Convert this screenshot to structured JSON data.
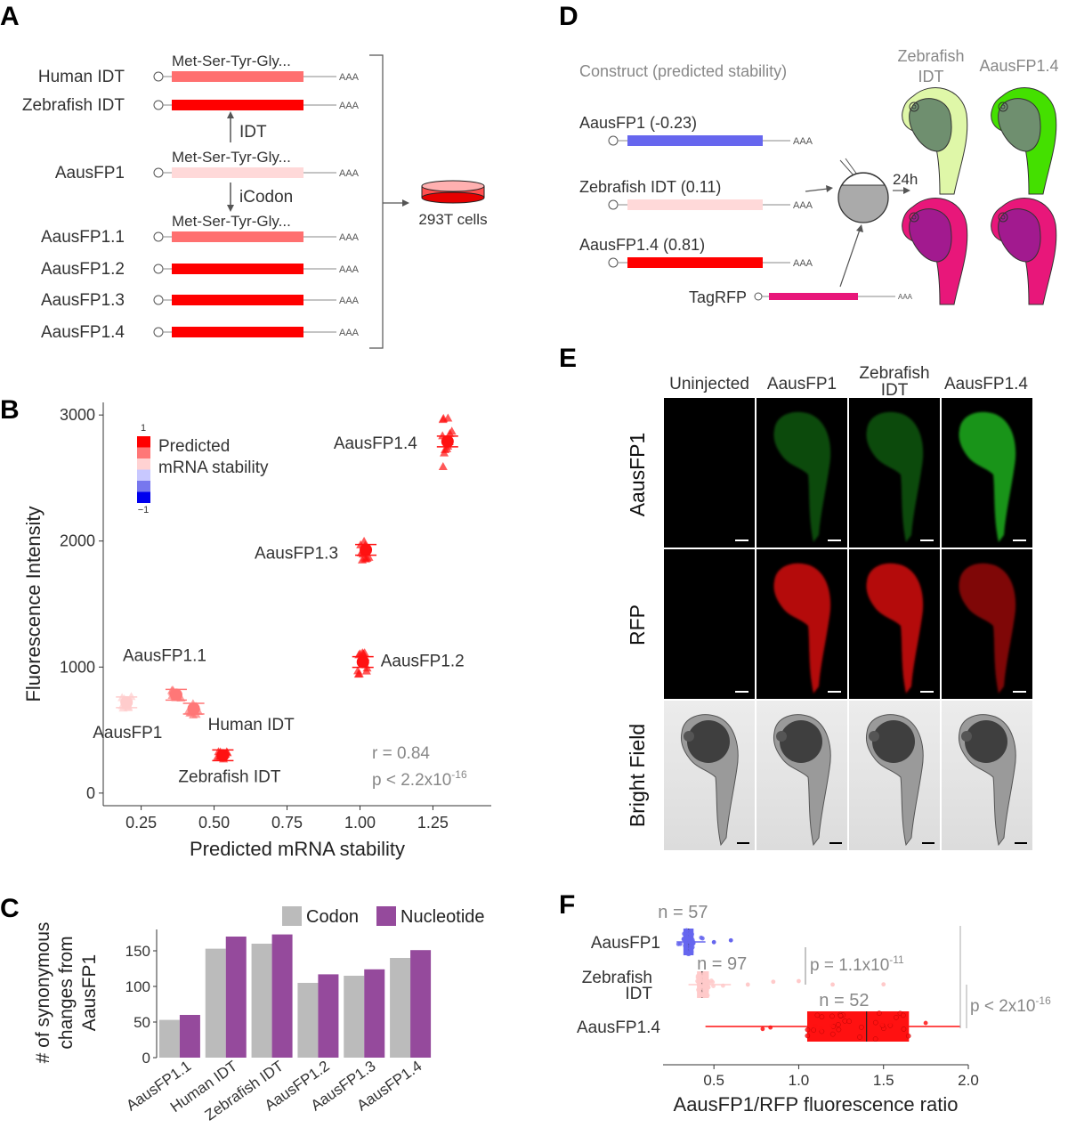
{
  "panel_labels": {
    "a": "A",
    "b": "B",
    "c": "C",
    "d": "D",
    "e": "E",
    "f": "F"
  },
  "colors": {
    "red": "#ff0000",
    "mid_red": "#ff7070",
    "light_red": "#ffd5d5",
    "blue": "#6666ee",
    "pink": "#e8177a",
    "green": "#33dd00"
  },
  "panel_a": {
    "rows": [
      {
        "label": "Human IDT",
        "peptide": "Met-Ser-Tyr-Gly...",
        "color": "#ff7070"
      },
      {
        "label": "Zebrafish IDT",
        "peptide": "",
        "color": "#ff0000"
      },
      {
        "label": "AausFP1",
        "peptide": "Met-Ser-Tyr-Gly...",
        "color": "#ffd9d9"
      },
      {
        "label": "AausFP1.1",
        "peptide": "Met-Ser-Tyr-Gly...",
        "color": "#ff7070"
      },
      {
        "label": "AausFP1.2",
        "peptide": "",
        "color": "#ff0000"
      },
      {
        "label": "AausFP1.3",
        "peptide": "",
        "color": "#ff0000"
      },
      {
        "label": "AausFP1.4",
        "peptide": "",
        "color": "#ff0000"
      }
    ],
    "polya": "AAA",
    "idt_arrow": "IDT",
    "icodon_arrow": "iCodon",
    "cells": "293T cells"
  },
  "chart_data": [
    {
      "type": "scatter",
      "panel": "B",
      "xlabel": "Predicted mRNA stability",
      "ylabel": "Fluorescence Intensity",
      "xlim": [
        0.12,
        1.45
      ],
      "ylim": [
        -100,
        3100
      ],
      "x_ticks": [
        {
          "v": 0.25,
          "l": "0.25"
        },
        {
          "v": 0.5,
          "l": "0.50"
        },
        {
          "v": 0.75,
          "l": "0.75"
        },
        {
          "v": 1.0,
          "l": "1.00"
        },
        {
          "v": 1.25,
          "l": "1.25"
        }
      ],
      "y_ticks": [
        {
          "v": 0,
          "l": "0"
        },
        {
          "v": 1000,
          "l": "1000"
        },
        {
          "v": 2000,
          "l": "2000"
        },
        {
          "v": 3000,
          "l": "3000"
        }
      ],
      "points": [
        {
          "name": "AausFP1",
          "x": 0.2,
          "y": 720,
          "spread": 50,
          "color": "#ffcccc"
        },
        {
          "name": "AausFP1.1",
          "x": 0.37,
          "y": 780,
          "spread": 40,
          "color": "#ff7777"
        },
        {
          "name": "Human IDT",
          "x": 0.43,
          "y": 670,
          "spread": 60,
          "color": "#ff7777"
        },
        {
          "name": "Zebrafish IDT",
          "x": 0.53,
          "y": 300,
          "spread": 30,
          "color": "#ff1111"
        },
        {
          "name": "AausFP1.2",
          "x": 1.01,
          "y": 1040,
          "spread": 100,
          "color": "#ff1111"
        },
        {
          "name": "AausFP1.3",
          "x": 1.02,
          "y": 1930,
          "spread": 80,
          "color": "#ff1111"
        },
        {
          "name": "AausFP1.4",
          "x": 1.3,
          "y": 2790,
          "spread": 230,
          "color": "#ff1111"
        }
      ],
      "legend_title": [
        "Predicted",
        "mRNA stability"
      ],
      "legend_max": "1",
      "legend_min": "−1",
      "legend_colors": [
        "#ff0000",
        "#ff7777",
        "#ffd2d2",
        "#c8c8ff",
        "#7777ee",
        "#0000ee"
      ],
      "stats": {
        "r": "r = 0.84",
        "p_main": "p < 2.2x10",
        "p_exp": "-16"
      }
    },
    {
      "type": "bar",
      "panel": "C",
      "categories": [
        "AausFP1.1",
        "Human IDT",
        "Zebrafish IDT",
        "AausFP1.2",
        "AausFP1.3",
        "AausFP1.4"
      ],
      "series": [
        {
          "name": "Codon",
          "color": "#bbbbbb",
          "values": [
            53,
            153,
            160,
            105,
            115,
            140
          ]
        },
        {
          "name": "Nucleotide",
          "color": "#954a9c",
          "values": [
            60,
            170,
            173,
            117,
            124,
            151
          ]
        }
      ],
      "ylabel": [
        "# of synonymous",
        "changes from",
        "AausFP1"
      ],
      "ylim": [
        0,
        180
      ],
      "y_ticks": [
        {
          "v": 0,
          "l": "0"
        },
        {
          "v": 50,
          "l": "50"
        },
        {
          "v": 100,
          "l": "100"
        },
        {
          "v": 150,
          "l": "150"
        }
      ]
    },
    {
      "type": "box",
      "panel": "F",
      "xlabel": "AausFP1/RFP fluorescence ratio",
      "xlim": [
        0.2,
        2.0
      ],
      "x_ticks": [
        {
          "v": 0.5,
          "l": "0.5"
        },
        {
          "v": 1.0,
          "l": "1.0"
        },
        {
          "v": 1.5,
          "l": "1.5"
        },
        {
          "v": 2.0,
          "l": "2.0"
        }
      ],
      "groups": [
        {
          "name": "AausFP1",
          "name_lines": [
            "AausFP1"
          ],
          "n": "n = 57",
          "color": "#6666ee",
          "min": 0.28,
          "q1": 0.32,
          "median": 0.35,
          "q3": 0.38,
          "max": 0.45,
          "outliers": [
            0.5,
            0.6
          ]
        },
        {
          "name": "Zebrafish IDT",
          "name_lines": [
            "Zebrafish",
            "IDT"
          ],
          "n": "n = 97",
          "color": "#ffcaca",
          "min": 0.35,
          "q1": 0.4,
          "median": 0.43,
          "q3": 0.47,
          "max": 0.6,
          "outliers": [
            0.7,
            0.85,
            1.0,
            1.2,
            1.5
          ]
        },
        {
          "name": "AausFP1.4",
          "name_lines": [
            "AausFP1.4"
          ],
          "n": "n = 52",
          "color": "#ff1111",
          "min": 0.45,
          "q1": 1.05,
          "median": 1.4,
          "q3": 1.65,
          "max": 1.95,
          "outliers": []
        }
      ],
      "p1": {
        "main": "p = 1.1x10",
        "exp": "-11"
      },
      "p2": {
        "main": "p < 2x10",
        "exp": "-16"
      }
    }
  ],
  "panel_d": {
    "title": "Construct (predicted stability)",
    "constructs": [
      {
        "label": "AausFP1 (-0.23)",
        "color": "#6666ee"
      },
      {
        "label": "Zebrafish IDT (0.11)",
        "color": "#ffd9d9"
      },
      {
        "label": "AausFP1.4 (0.81)",
        "color": "#ff0000"
      }
    ],
    "polya": "AAA",
    "tagrfp": "TagRFP",
    "time": "24h",
    "embryo_titles": [
      [
        "Zebrafish",
        "IDT"
      ],
      [
        "AausFP1.4"
      ]
    ],
    "green_light": "#dff7a8",
    "green_bright": "#44e000"
  },
  "panel_e": {
    "columns": [
      [
        "Uninjected"
      ],
      [
        "AausFP1"
      ],
      [
        "Zebrafish",
        "IDT"
      ],
      [
        "AausFP1.4"
      ]
    ],
    "rows": [
      "AausFP1",
      "RFP",
      "Bright Field"
    ],
    "intensity": {
      "green": [
        0.0,
        0.45,
        0.45,
        0.9
      ],
      "red": [
        0.0,
        0.85,
        0.85,
        0.6
      ]
    }
  }
}
